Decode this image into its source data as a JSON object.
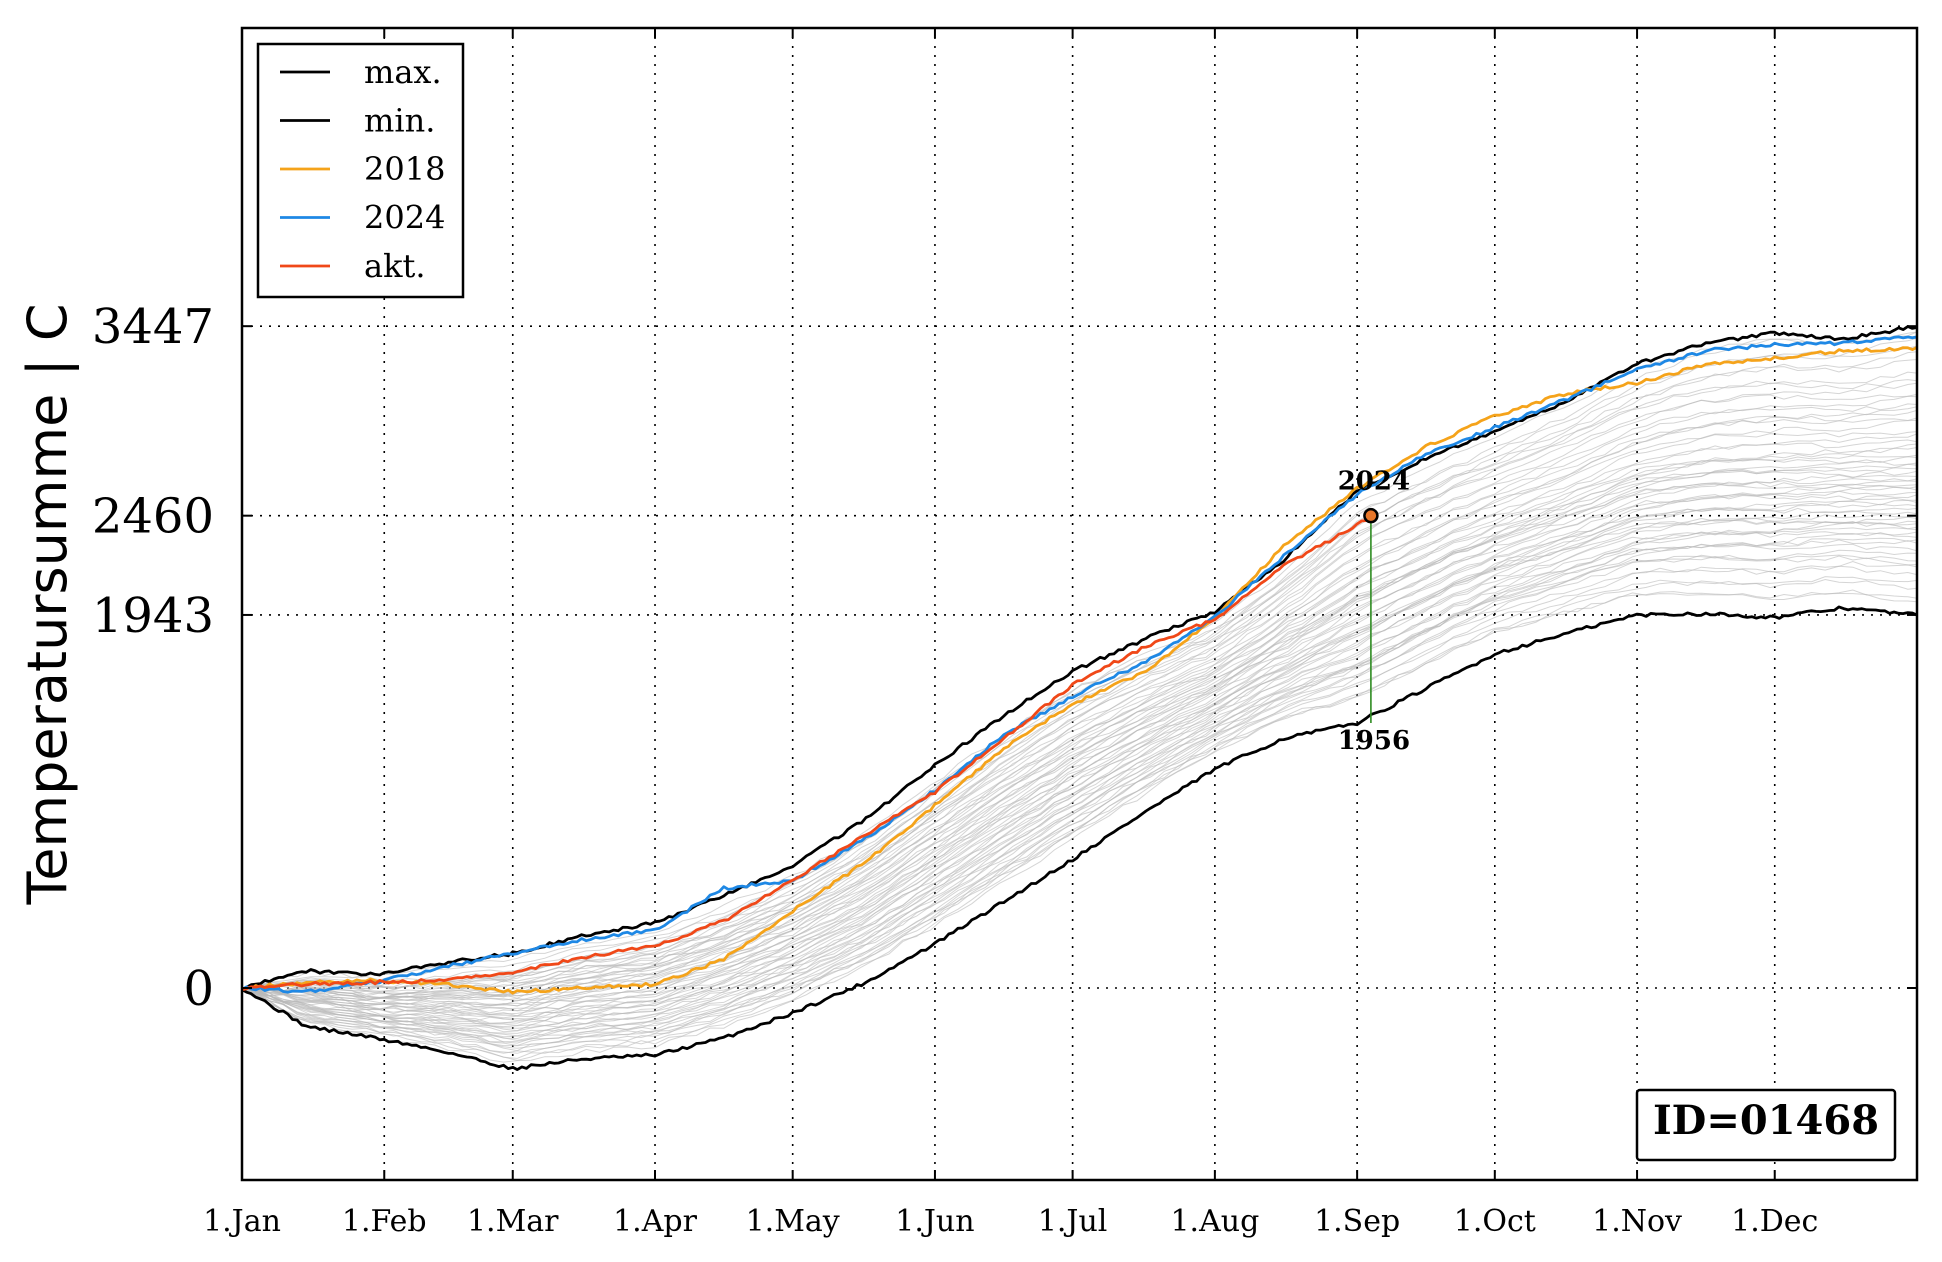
{
  "chart_data": {
    "type": "line",
    "title": "",
    "xlabel": "",
    "ylabel": "Temperatursumme | C",
    "x_ticks": [
      "1.Jan",
      "1.Feb",
      "1.Mar",
      "1.Apr",
      "1.May",
      "1.Jun",
      "1.Jul",
      "1.Aug",
      "1.Sep",
      "1.Oct",
      "1.Nov",
      "1.Dec"
    ],
    "x_tick_days": [
      1,
      32,
      60,
      91,
      121,
      152,
      182,
      213,
      244,
      274,
      305,
      335
    ],
    "xlim": [
      1,
      366
    ],
    "y_ticks": [
      0,
      1943,
      2460,
      3447
    ],
    "ylim": [
      -1000,
      5000
    ],
    "grid": true,
    "legend_position": "top-left",
    "series": [
      {
        "name": "max.",
        "color": "#000000",
        "x": [
          1,
          15,
          30,
          45,
          60,
          75,
          91,
          106,
          121,
          137,
          152,
          167,
          182,
          198,
          213,
          228,
          244,
          259,
          274,
          290,
          305,
          320,
          335,
          350,
          366
        ],
        "y": [
          0,
          90,
          70,
          130,
          180,
          270,
          340,
          480,
          640,
          880,
          1160,
          1420,
          1650,
          1820,
          1960,
          2230,
          2590,
          2760,
          2900,
          3060,
          3250,
          3360,
          3410,
          3380,
          3447
        ]
      },
      {
        "name": "min.",
        "color": "#000000",
        "x": [
          1,
          15,
          30,
          45,
          60,
          75,
          91,
          106,
          121,
          137,
          152,
          167,
          182,
          198,
          213,
          228,
          244,
          259,
          274,
          290,
          305,
          320,
          335,
          350,
          366
        ],
        "y": [
          0,
          -200,
          -260,
          -330,
          -420,
          -370,
          -350,
          -260,
          -130,
          30,
          230,
          450,
          670,
          920,
          1140,
          1300,
          1380,
          1560,
          1740,
          1850,
          1943,
          1950,
          1930,
          1980,
          1943
        ]
      },
      {
        "name": "2018",
        "color": "#f5a31a",
        "x": [
          1,
          15,
          30,
          45,
          60,
          75,
          91,
          106,
          121,
          137,
          152,
          167,
          182,
          198,
          213,
          228,
          244,
          259,
          274,
          290,
          305,
          320,
          335,
          350,
          366
        ],
        "y": [
          0,
          30,
          40,
          20,
          -20,
          0,
          20,
          150,
          400,
          660,
          950,
          1250,
          1480,
          1650,
          1930,
          2300,
          2600,
          2820,
          2980,
          3100,
          3150,
          3250,
          3280,
          3320,
          3330
        ]
      },
      {
        "name": "2024",
        "color": "#1e88e5",
        "x": [
          1,
          15,
          30,
          45,
          60,
          75,
          91,
          106,
          121,
          137,
          152,
          167,
          182,
          198,
          213,
          228,
          244,
          259,
          274,
          290,
          305,
          320,
          335,
          350,
          366
        ],
        "y": [
          0,
          -20,
          30,
          110,
          180,
          250,
          300,
          520,
          560,
          780,
          1030,
          1320,
          1520,
          1700,
          1930,
          2250,
          2570,
          2780,
          2920,
          3070,
          3220,
          3320,
          3350,
          3360,
          3390
        ]
      },
      {
        "name": "akt.",
        "color": "#f04818",
        "x": [
          1,
          15,
          30,
          45,
          60,
          75,
          91,
          106,
          121,
          137,
          152,
          167,
          182,
          198,
          213,
          228,
          244,
          247
        ],
        "y": [
          0,
          20,
          30,
          40,
          80,
          160,
          220,
          350,
          560,
          800,
          1020,
          1300,
          1580,
          1780,
          1920,
          2200,
          2410,
          2460
        ]
      }
    ],
    "background_series_count": 60,
    "annotations": [
      {
        "text": "2024",
        "x": 247,
        "y": 2460,
        "position": "above"
      },
      {
        "text": "1956",
        "x": 247,
        "y": 1380,
        "position": "below"
      }
    ],
    "current_point": {
      "x": 247,
      "y": 2460
    }
  },
  "id_box": {
    "label": "ID=01468"
  }
}
